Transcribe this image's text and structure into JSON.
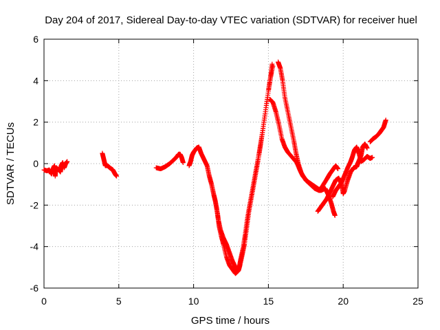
{
  "chart_data": {
    "type": "scatter",
    "title": "Day 204 of 2017, Sidereal Day-to-day VTEC variation (SDTVAR) for receiver huel",
    "xlabel": "GPS time / hours",
    "ylabel": "SDTVAR / TECUs",
    "xlim": [
      0,
      25
    ],
    "ylim": [
      -6,
      6
    ],
    "xticks": [
      "0",
      "5",
      "10",
      "15",
      "20",
      "25"
    ],
    "yticks": [
      "-6",
      "-4",
      "-2",
      "0",
      "2",
      "4",
      "6"
    ],
    "grid": true,
    "marker": "plus",
    "color": "#ff0000",
    "series": [
      {
        "segments": [
          [
            [
              0.0,
              -0.3
            ],
            [
              0.2,
              -0.35
            ],
            [
              0.35,
              -0.3
            ],
            [
              0.5,
              -0.5
            ],
            [
              0.6,
              -0.25
            ],
            [
              0.7,
              -0.1
            ],
            [
              0.75,
              -0.6
            ],
            [
              0.8,
              -0.2
            ],
            [
              0.9,
              -0.25
            ],
            [
              1.0,
              -0.3
            ],
            [
              1.1,
              -0.4
            ],
            [
              1.15,
              -0.1
            ],
            [
              1.25,
              0.05
            ],
            [
              1.35,
              -0.2
            ],
            [
              1.45,
              0.0
            ],
            [
              1.55,
              0.1
            ]
          ],
          [
            [
              3.9,
              0.5
            ],
            [
              4.0,
              0.2
            ],
            [
              4.1,
              -0.1
            ],
            [
              4.25,
              -0.1
            ],
            [
              4.4,
              -0.2
            ],
            [
              4.6,
              -0.3
            ],
            [
              4.75,
              -0.5
            ],
            [
              4.85,
              -0.6
            ]
          ],
          [
            [
              7.5,
              -0.2
            ],
            [
              7.8,
              -0.25
            ],
            [
              8.1,
              -0.15
            ],
            [
              8.4,
              0.0
            ],
            [
              8.7,
              0.2
            ],
            [
              8.9,
              0.35
            ],
            [
              9.0,
              0.45
            ],
            [
              9.1,
              0.45
            ],
            [
              9.2,
              0.3
            ],
            [
              9.3,
              0.05
            ]
          ],
          [
            [
              9.7,
              -0.1
            ],
            [
              9.8,
              0.1
            ],
            [
              9.9,
              0.4
            ],
            [
              10.0,
              0.55
            ],
            [
              10.2,
              0.75
            ],
            [
              10.35,
              0.8
            ],
            [
              10.5,
              0.5
            ],
            [
              10.7,
              0.2
            ],
            [
              10.9,
              -0.1
            ],
            [
              11.05,
              -0.6
            ],
            [
              11.2,
              -1.0
            ],
            [
              11.35,
              -1.5
            ],
            [
              11.45,
              -1.8
            ],
            [
              11.55,
              -2.2
            ],
            [
              11.65,
              -2.7
            ],
            [
              11.8,
              -3.2
            ],
            [
              12.0,
              -3.6
            ],
            [
              12.2,
              -3.9
            ],
            [
              12.4,
              -4.3
            ],
            [
              12.6,
              -4.7
            ],
            [
              12.8,
              -5.0
            ],
            [
              12.95,
              -5.2
            ],
            [
              13.05,
              -5.0
            ],
            [
              13.15,
              -4.6
            ],
            [
              13.3,
              -4.1
            ],
            [
              13.45,
              -3.4
            ],
            [
              13.6,
              -2.6
            ],
            [
              13.8,
              -1.8
            ],
            [
              14.0,
              -1.0
            ],
            [
              14.2,
              -0.2
            ],
            [
              14.4,
              0.6
            ],
            [
              14.6,
              1.5
            ],
            [
              14.8,
              2.5
            ],
            [
              15.0,
              3.5
            ],
            [
              15.15,
              4.2
            ],
            [
              15.25,
              4.8
            ]
          ],
          [
            [
              11.6,
              -2.4
            ],
            [
              11.7,
              -3.0
            ],
            [
              11.85,
              -3.5
            ],
            [
              12.0,
              -3.9
            ],
            [
              12.2,
              -4.5
            ],
            [
              12.4,
              -4.9
            ],
            [
              12.6,
              -5.1
            ],
            [
              12.8,
              -5.3
            ],
            [
              13.0,
              -5.15
            ],
            [
              13.1,
              -4.9
            ],
            [
              13.25,
              -4.4
            ],
            [
              13.4,
              -3.9
            ],
            [
              13.55,
              -3.1
            ],
            [
              13.7,
              -2.3
            ],
            [
              13.9,
              -1.5
            ],
            [
              14.1,
              -0.7
            ],
            [
              14.3,
              0.1
            ],
            [
              14.5,
              1.0
            ],
            [
              14.7,
              2.0
            ],
            [
              14.9,
              3.0
            ],
            [
              15.1,
              4.0
            ],
            [
              15.3,
              4.7
            ]
          ],
          [
            [
              15.1,
              3.1
            ],
            [
              15.3,
              2.95
            ],
            [
              15.5,
              2.5
            ],
            [
              15.7,
              1.9
            ],
            [
              15.9,
              1.2
            ],
            [
              16.1,
              0.8
            ],
            [
              16.3,
              0.55
            ],
            [
              16.6,
              0.3
            ],
            [
              16.9,
              0.05
            ],
            [
              17.1,
              -0.3
            ],
            [
              17.3,
              -0.6
            ],
            [
              17.6,
              -0.85
            ],
            [
              17.9,
              -1.0
            ],
            [
              18.2,
              -1.15
            ],
            [
              18.5,
              -1.3
            ],
            [
              18.8,
              -1.2
            ],
            [
              19.0,
              -1.5
            ],
            [
              19.2,
              -1.9
            ],
            [
              19.35,
              -2.3
            ],
            [
              19.45,
              -2.5
            ]
          ],
          [
            [
              15.65,
              4.9
            ],
            [
              15.8,
              4.6
            ],
            [
              15.95,
              4.0
            ],
            [
              16.1,
              3.2
            ],
            [
              16.3,
              2.5
            ],
            [
              16.5,
              1.8
            ],
            [
              16.7,
              1.1
            ],
            [
              16.85,
              0.5
            ],
            [
              17.0,
              0.0
            ],
            [
              17.2,
              -0.45
            ],
            [
              17.5,
              -0.8
            ],
            [
              17.8,
              -1.0
            ],
            [
              18.1,
              -1.2
            ],
            [
              18.4,
              -1.3
            ],
            [
              18.6,
              -1.1
            ],
            [
              18.9,
              -0.75
            ],
            [
              19.1,
              -0.5
            ],
            [
              19.3,
              -0.3
            ],
            [
              19.5,
              -0.1
            ],
            [
              19.65,
              -0.25
            ]
          ],
          [
            [
              18.3,
              -2.3
            ],
            [
              18.5,
              -2.1
            ],
            [
              18.7,
              -1.9
            ],
            [
              18.9,
              -1.7
            ],
            [
              19.1,
              -1.4
            ],
            [
              19.3,
              -1.1
            ],
            [
              19.5,
              -0.8
            ],
            [
              19.7,
              -0.7
            ],
            [
              19.9,
              -1.0
            ],
            [
              20.0,
              -1.45
            ],
            [
              20.1,
              -1.3
            ],
            [
              20.3,
              -0.8
            ],
            [
              20.5,
              -0.4
            ],
            [
              20.7,
              -0.2
            ],
            [
              20.9,
              -0.15
            ],
            [
              21.0,
              0.05
            ],
            [
              21.2,
              0.4
            ],
            [
              21.3,
              0.8
            ],
            [
              21.45,
              0.95
            ],
            [
              21.6,
              0.75
            ]
          ],
          [
            [
              19.3,
              -1.6
            ],
            [
              19.5,
              -1.3
            ],
            [
              19.7,
              -1.1
            ],
            [
              19.9,
              -0.9
            ],
            [
              20.1,
              -0.55
            ],
            [
              20.3,
              -0.2
            ],
            [
              20.5,
              0.1
            ],
            [
              20.6,
              0.3
            ],
            [
              20.75,
              0.65
            ],
            [
              20.9,
              0.8
            ],
            [
              21.05,
              0.5
            ],
            [
              21.2,
              0.1
            ],
            [
              21.4,
              0.2
            ],
            [
              21.6,
              0.35
            ],
            [
              21.8,
              0.25
            ],
            [
              21.95,
              0.3
            ]
          ],
          [
            [
              21.8,
              1.05
            ],
            [
              22.0,
              1.2
            ],
            [
              22.2,
              1.3
            ],
            [
              22.4,
              1.45
            ],
            [
              22.55,
              1.6
            ],
            [
              22.7,
              1.75
            ],
            [
              22.85,
              2.1
            ]
          ]
        ]
      }
    ]
  }
}
